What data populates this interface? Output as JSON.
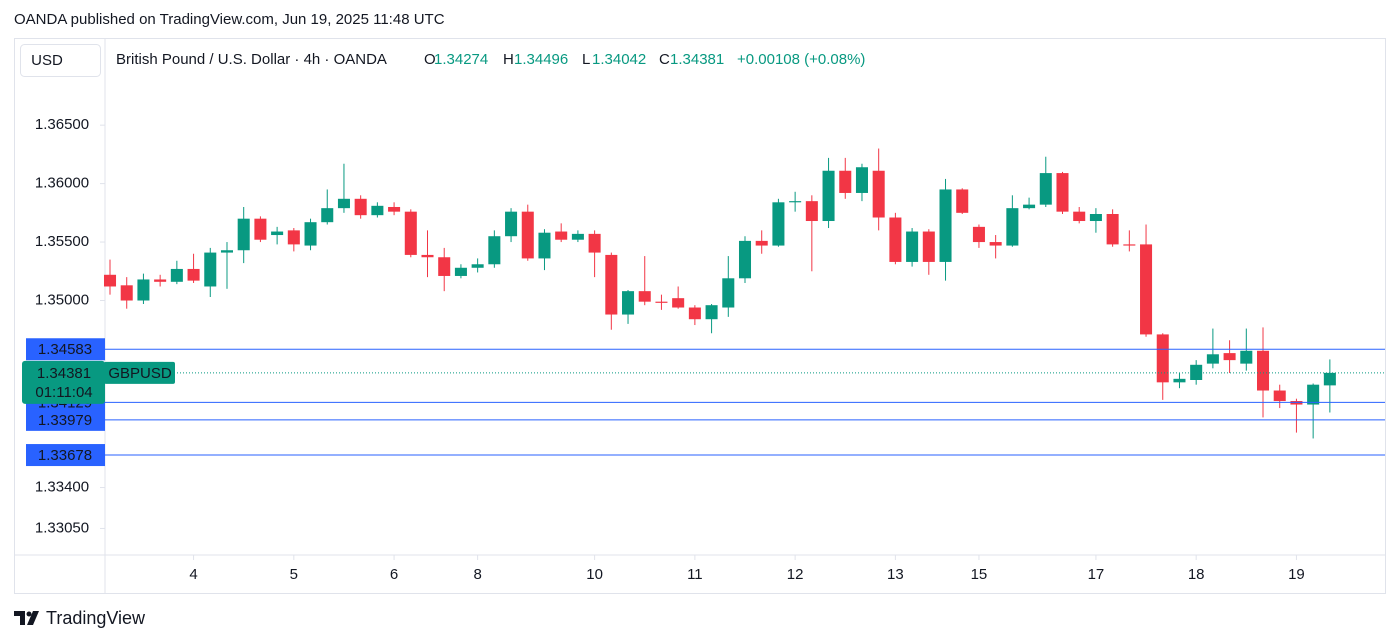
{
  "header": {
    "publisher": "OANDA published on TradingView.com, Jun 19, 2025 11:48 UTC"
  },
  "footer": {
    "brand": "TradingView"
  },
  "chart_data": {
    "type": "candlestick",
    "currency": "USD",
    "title": "British Pound / U.S. Dollar · 4h · OANDA",
    "ohlc_labels": [
      "O",
      "H",
      "L",
      "C"
    ],
    "change": "+0.00108 (+0.08%)",
    "symbol": "GBPUSD",
    "countdown": "01:11:04",
    "up_color": "#089981",
    "down_color": "#f23645",
    "level_color": "#2962ff",
    "price_lines": [
      1.34583,
      1.34129,
      1.33979,
      1.33678
    ],
    "open": [
      1.3522,
      1.3513,
      1.35,
      1.3518,
      1.3516,
      1.3527,
      1.3512,
      1.3541,
      1.3543,
      1.357,
      1.3556,
      1.356,
      1.3547,
      1.3567,
      1.3579,
      1.3587,
      1.3573,
      1.358,
      1.3576,
      1.3539,
      1.3537,
      1.3521,
      1.3528,
      1.3531,
      1.3555,
      1.3576,
      1.3536,
      1.3559,
      1.3552,
      1.3557,
      1.3539,
      1.3488,
      1.3508,
      1.3499,
      1.3502,
      1.3494,
      1.3484,
      1.3494,
      1.3519,
      1.3551,
      1.3547,
      1.3584,
      1.3585,
      1.3568,
      1.3611,
      1.3592,
      1.3611,
      1.3571,
      1.3533,
      1.3559,
      1.3533,
      1.3595,
      1.3563,
      1.355,
      1.3547,
      1.3579,
      1.3582,
      1.3609,
      1.3576,
      1.3568,
      1.3574,
      1.3548,
      1.3548,
      1.3471,
      1.343,
      1.3432,
      1.3446,
      1.3455,
      1.3446,
      1.3457,
      1.3423,
      1.3414,
      1.3411,
      1.34274
    ],
    "high": [
      1.3535,
      1.352,
      1.3523,
      1.3522,
      1.3534,
      1.354,
      1.3545,
      1.355,
      1.358,
      1.3572,
      1.3563,
      1.3562,
      1.357,
      1.3595,
      1.3617,
      1.359,
      1.3584,
      1.3584,
      1.3578,
      1.356,
      1.3545,
      1.3531,
      1.3536,
      1.356,
      1.3579,
      1.3582,
      1.3561,
      1.3566,
      1.356,
      1.356,
      1.3541,
      1.3509,
      1.3538,
      1.3505,
      1.3512,
      1.3496,
      1.3497,
      1.3538,
      1.3555,
      1.356,
      1.3587,
      1.3593,
      1.359,
      1.3622,
      1.3622,
      1.3617,
      1.363,
      1.3575,
      1.3562,
      1.3561,
      1.3604,
      1.3596,
      1.3565,
      1.3556,
      1.359,
      1.3588,
      1.3623,
      1.361,
      1.358,
      1.3579,
      1.3578,
      1.356,
      1.3565,
      1.3472,
      1.3438,
      1.3449,
      1.3476,
      1.3466,
      1.3476,
      1.3477,
      1.3428,
      1.3416,
      1.3429,
      1.34496
    ],
    "low": [
      1.3505,
      1.3493,
      1.3497,
      1.3512,
      1.3514,
      1.3515,
      1.3503,
      1.351,
      1.3532,
      1.355,
      1.3548,
      1.3542,
      1.3543,
      1.3565,
      1.3575,
      1.357,
      1.3571,
      1.3573,
      1.3537,
      1.352,
      1.3508,
      1.3519,
      1.3524,
      1.3528,
      1.355,
      1.3534,
      1.3526,
      1.355,
      1.355,
      1.352,
      1.3475,
      1.348,
      1.3496,
      1.3492,
      1.3493,
      1.3479,
      1.3472,
      1.3486,
      1.3515,
      1.354,
      1.3546,
      1.3576,
      1.3525,
      1.3562,
      1.3587,
      1.3585,
      1.356,
      1.3531,
      1.3529,
      1.3522,
      1.3517,
      1.3574,
      1.3545,
      1.3536,
      1.3546,
      1.3578,
      1.358,
      1.3574,
      1.3566,
      1.3558,
      1.3546,
      1.3542,
      1.3469,
      1.3415,
      1.3425,
      1.3428,
      1.3442,
      1.3438,
      1.344,
      1.34,
      1.3408,
      1.3387,
      1.3382,
      1.34042
    ],
    "close": [
      1.3512,
      1.35,
      1.3518,
      1.3516,
      1.3527,
      1.3517,
      1.3541,
      1.3543,
      1.357,
      1.3552,
      1.3559,
      1.3548,
      1.3567,
      1.3579,
      1.3587,
      1.3573,
      1.3581,
      1.3576,
      1.3539,
      1.3537,
      1.3521,
      1.3528,
      1.3531,
      1.3555,
      1.3576,
      1.3536,
      1.3558,
      1.3552,
      1.3557,
      1.3541,
      1.3488,
      1.3508,
      1.3499,
      1.3498,
      1.3494,
      1.3484,
      1.3496,
      1.3519,
      1.3551,
      1.3547,
      1.3584,
      1.3585,
      1.3568,
      1.3611,
      1.3592,
      1.3614,
      1.3571,
      1.3533,
      1.3559,
      1.3533,
      1.3595,
      1.3575,
      1.355,
      1.3547,
      1.3579,
      1.3582,
      1.3609,
      1.3576,
      1.3568,
      1.3574,
      1.3548,
      1.3547,
      1.3471,
      1.343,
      1.3433,
      1.3445,
      1.3454,
      1.3449,
      1.3457,
      1.3423,
      1.3414,
      1.3411,
      1.3428,
      1.34381
    ],
    "xlim": [
      -0.3,
      76.3
    ],
    "xticks": [
      {
        "value": 5,
        "label": "4"
      },
      {
        "value": 11,
        "label": "5"
      },
      {
        "value": 17,
        "label": "6"
      },
      {
        "value": 22,
        "label": "8"
      },
      {
        "value": 29,
        "label": "10"
      },
      {
        "value": 35,
        "label": "11"
      },
      {
        "value": 41,
        "label": "12"
      },
      {
        "value": 47,
        "label": "13"
      },
      {
        "value": 52,
        "label": "15"
      },
      {
        "value": 59,
        "label": "17"
      },
      {
        "value": 65,
        "label": "18"
      },
      {
        "value": 71,
        "label": "19"
      }
    ],
    "ylim": [
      1.32823,
      1.37237
    ],
    "yticks": [
      {
        "value": 1.365,
        "label": "1.36500"
      },
      {
        "value": 1.36,
        "label": "1.36000"
      },
      {
        "value": 1.355,
        "label": "1.35500"
      },
      {
        "value": 1.35,
        "label": "1.35000"
      },
      {
        "value": 1.334,
        "label": "1.33400"
      },
      {
        "value": 1.3305,
        "label": "1.33050"
      }
    ]
  }
}
